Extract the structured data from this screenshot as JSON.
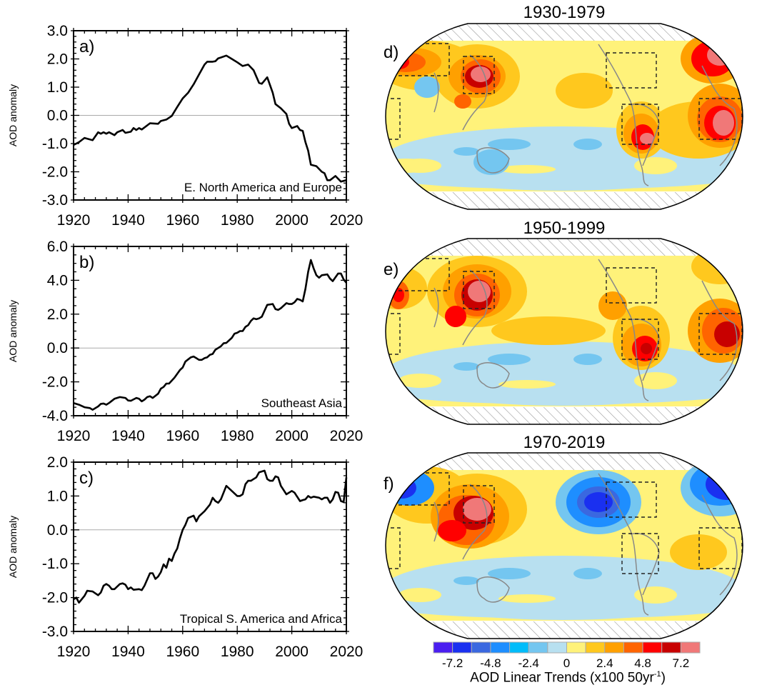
{
  "chart_data": [
    {
      "type": "line",
      "panel_label": "a)",
      "region_label": "E. North America and Europe",
      "ylabel": "AOD anomaly",
      "xlabel": "",
      "xlim": [
        1920,
        2020
      ],
      "ylim": [
        -3.0,
        3.0
      ],
      "xticks": [
        "1920",
        "1940",
        "1960",
        "1980",
        "2000",
        "2020"
      ],
      "yticks": [
        "3.0",
        "2.0",
        "1.0",
        "0.0",
        "-1.0",
        "-2.0",
        "-3.0"
      ],
      "zero_line": true,
      "x": [
        1920,
        1922,
        1924,
        1927,
        1929,
        1930,
        1931,
        1932,
        1933,
        1935,
        1936,
        1938,
        1939,
        1941,
        1942,
        1943,
        1944,
        1945,
        1948,
        1951,
        1952,
        1954,
        1956,
        1958,
        1960,
        1962,
        1964,
        1966,
        1968,
        1969,
        1971,
        1972,
        1973,
        1974,
        1976,
        1978,
        1980,
        1982,
        1984,
        1986,
        1988,
        1989,
        1991,
        1993,
        1994,
        1996,
        1998,
        1999,
        2000,
        2002,
        2003,
        2004,
        2005,
        2006,
        2007,
        2009,
        2011,
        2012,
        2013,
        2014,
        2016,
        2018,
        2020
      ],
      "y": [
        -1.05,
        -0.95,
        -0.8,
        -0.88,
        -0.6,
        -0.65,
        -0.6,
        -0.65,
        -0.6,
        -0.7,
        -0.6,
        -0.52,
        -0.62,
        -0.58,
        -0.45,
        -0.52,
        -0.45,
        -0.5,
        -0.28,
        -0.3,
        -0.2,
        -0.15,
        -0.02,
        0.3,
        0.6,
        0.8,
        1.1,
        1.45,
        1.8,
        1.9,
        1.9,
        1.92,
        2.02,
        2.05,
        2.12,
        2.0,
        1.88,
        1.75,
        1.8,
        1.6,
        1.15,
        1.12,
        1.35,
        0.8,
        0.4,
        0.25,
        0.05,
        -0.3,
        -0.45,
        -0.38,
        -0.52,
        -0.55,
        -0.95,
        -1.25,
        -1.75,
        -1.8,
        -2.0,
        -2.05,
        -2.3,
        -2.3,
        -2.15,
        -2.35,
        -2.3
      ]
    },
    {
      "type": "line",
      "panel_label": "b)",
      "region_label": "Southeast Asia",
      "ylabel": "AOD anomaly",
      "xlabel": "",
      "xlim": [
        1920,
        2020
      ],
      "ylim": [
        -4.0,
        6.0
      ],
      "xticks": [
        "1920",
        "1940",
        "1960",
        "1980",
        "2000",
        "2020"
      ],
      "yticks": [
        "6.0",
        "4.0",
        "2.0",
        "0.0",
        "-2.0",
        "-4.0"
      ],
      "zero_line": true,
      "x": [
        1920,
        1922,
        1924,
        1926,
        1927,
        1929,
        1930,
        1931,
        1932,
        1933,
        1935,
        1937,
        1939,
        1940,
        1941,
        1943,
        1944,
        1945,
        1946,
        1947,
        1948,
        1949,
        1951,
        1952,
        1953,
        1954,
        1955,
        1957,
        1959,
        1960,
        1961,
        1963,
        1964,
        1965,
        1966,
        1967,
        1968,
        1969,
        1970,
        1971,
        1972,
        1974,
        1975,
        1976,
        1978,
        1979,
        1980,
        1981,
        1982,
        1983,
        1984,
        1985,
        1986,
        1987,
        1988,
        1989,
        1990,
        1991,
        1993,
        1994,
        1995,
        1996,
        1998,
        1999,
        2000,
        2001,
        2002,
        2003,
        2004,
        2005,
        2006,
        2007,
        2008,
        2009,
        2010,
        2011,
        2013,
        2014,
        2015,
        2017,
        2018,
        2019,
        2020
      ],
      "y": [
        -3.25,
        -3.35,
        -3.5,
        -3.55,
        -3.65,
        -3.45,
        -3.3,
        -3.28,
        -3.35,
        -3.25,
        -3.0,
        -2.9,
        -2.95,
        -3.1,
        -3.12,
        -2.95,
        -3.0,
        -3.15,
        -3.05,
        -2.9,
        -2.85,
        -2.95,
        -2.7,
        -2.4,
        -2.3,
        -2.1,
        -2.1,
        -1.75,
        -1.3,
        -1.15,
        -0.8,
        -0.55,
        -0.5,
        -0.6,
        -0.7,
        -0.7,
        -0.6,
        -0.55,
        -0.4,
        -0.35,
        -0.1,
        0.1,
        0.28,
        0.3,
        0.6,
        0.85,
        0.9,
        1.0,
        1.0,
        1.25,
        1.35,
        1.6,
        1.75,
        1.7,
        1.75,
        1.85,
        2.2,
        2.55,
        2.6,
        2.3,
        2.25,
        2.35,
        2.65,
        2.6,
        2.6,
        2.7,
        2.9,
        2.85,
        2.75,
        3.5,
        4.5,
        5.2,
        4.7,
        4.3,
        4.15,
        4.3,
        4.35,
        4.1,
        3.95,
        4.4,
        4.4,
        4.05,
        3.85
      ]
    },
    {
      "type": "line",
      "panel_label": "c)",
      "region_label": "Tropical S. America and Africa",
      "ylabel": "AOD anomaly",
      "xlabel": "",
      "xlim": [
        1920,
        2020
      ],
      "ylim": [
        -3.0,
        2.0
      ],
      "xticks": [
        "1920",
        "1940",
        "1960",
        "1980",
        "2000",
        "2020"
      ],
      "yticks": [
        "2.0",
        "1.0",
        "0.0",
        "-1.0",
        "-2.0",
        "-3.0"
      ],
      "zero_line": true,
      "x": [
        1920,
        1921,
        1922,
        1924,
        1925,
        1927,
        1929,
        1930,
        1931,
        1932,
        1933,
        1934,
        1935,
        1937,
        1938,
        1939,
        1940,
        1941,
        1942,
        1944,
        1945,
        1946,
        1948,
        1949,
        1950,
        1951,
        1952,
        1953,
        1954,
        1955,
        1956,
        1957,
        1958,
        1959,
        1960,
        1961,
        1962,
        1964,
        1965,
        1966,
        1968,
        1970,
        1971,
        1972,
        1973,
        1974,
        1976,
        1978,
        1980,
        1981,
        1982,
        1983,
        1984,
        1985,
        1986,
        1987,
        1988,
        1990,
        1991,
        1992,
        1993,
        1994,
        1995,
        1996,
        1998,
        2000,
        2001,
        2003,
        2004,
        2005,
        2006,
        2007,
        2008,
        2010,
        2011,
        2012,
        2013,
        2014,
        2015,
        2016,
        2017,
        2018,
        2019,
        2020
      ],
      "y": [
        -2.05,
        -2.0,
        -2.15,
        -1.95,
        -1.8,
        -1.82,
        -1.93,
        -1.85,
        -1.65,
        -1.6,
        -1.65,
        -1.75,
        -1.75,
        -1.6,
        -1.58,
        -1.62,
        -1.75,
        -1.7,
        -1.77,
        -1.75,
        -1.78,
        -1.65,
        -1.28,
        -1.28,
        -1.45,
        -1.38,
        -1.25,
        -1.02,
        -1.12,
        -0.85,
        -0.92,
        -0.7,
        -0.55,
        -0.25,
        0.0,
        0.15,
        0.35,
        0.42,
        0.25,
        0.4,
        0.55,
        0.75,
        0.95,
        0.85,
        0.8,
        0.9,
        1.3,
        1.15,
        1.0,
        1.0,
        1.05,
        1.35,
        1.45,
        1.45,
        1.5,
        1.55,
        1.7,
        1.75,
        1.5,
        1.45,
        1.45,
        1.58,
        1.55,
        1.3,
        1.05,
        1.15,
        1.1,
        0.85,
        0.88,
        0.9,
        1.0,
        0.95,
        0.98,
        0.95,
        0.9,
        0.95,
        0.95,
        0.8,
        0.9,
        1.12,
        1.1,
        0.85,
        0.82,
        1.55
      ]
    },
    {
      "type": "heatmap",
      "maps": [
        {
          "panel_label": "d)",
          "title": "1930-1979"
        },
        {
          "panel_label": "e)",
          "title": "1950-1999"
        },
        {
          "panel_label": "f)",
          "title": "1970-2019"
        }
      ],
      "colorbar": {
        "title": "AOD Linear Trends (x100 50yr",
        "title_sup": "-1",
        "title_end": ")",
        "levels": [
          -7.2,
          -6.0,
          -4.8,
          -3.6,
          -2.4,
          -1.2,
          0,
          1.2,
          2.4,
          3.6,
          4.8,
          6.0,
          7.2
        ],
        "tick_labels": [
          "-7.2",
          "-4.8",
          "-2.4",
          "0",
          "2.4",
          "4.8",
          "7.2"
        ],
        "colors": [
          "#4a1ef0",
          "#1a30f0",
          "#3a68e0",
          "#1e8eff",
          "#00bcfa",
          "#74c6f0",
          "#b8e0f0",
          "#fff27a",
          "#ffc81e",
          "#ffa000",
          "#ff6400",
          "#ff0000",
          "#c80000",
          "#f07878"
        ]
      },
      "polar_mask": "hatched",
      "region_boxes": "dashed"
    }
  ]
}
